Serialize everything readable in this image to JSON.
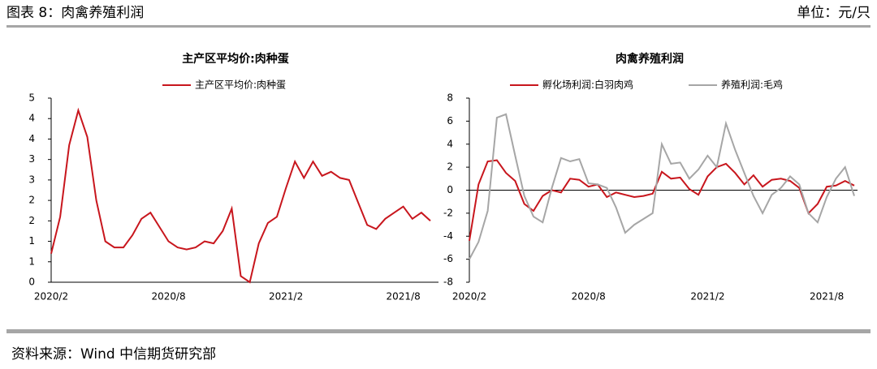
{
  "header": {
    "title": "图表 8：肉禽养殖利润",
    "unit": "单位：元/只"
  },
  "source": "资料来源：Wind 中信期货研究部",
  "chart_data": [
    {
      "type": "line",
      "title": "主产区平均价:肉种蛋",
      "categories": [
        "2020/2",
        null,
        null,
        null,
        null,
        null,
        null,
        null,
        null,
        null,
        null,
        null,
        null,
        "2020/8",
        null,
        null,
        null,
        null,
        null,
        null,
        null,
        null,
        null,
        null,
        null,
        null,
        "2021/2",
        null,
        null,
        null,
        null,
        null,
        null,
        null,
        null,
        null,
        null,
        null,
        null,
        "2021/8",
        null,
        null,
        null
      ],
      "series": [
        {
          "name": "主产区平均价:肉种蛋",
          "color": "#c8161d",
          "values": [
            0.7,
            1.6,
            3.35,
            4.2,
            3.55,
            2.0,
            1.0,
            0.85,
            0.85,
            1.15,
            1.55,
            1.7,
            1.35,
            1.0,
            0.85,
            0.8,
            0.85,
            1.0,
            0.95,
            1.25,
            1.8,
            0.15,
            0,
            0.95,
            1.45,
            1.6,
            2.3,
            2.95,
            2.55,
            2.95,
            2.6,
            2.7,
            2.55,
            2.5,
            1.95,
            1.4,
            1.3,
            1.55,
            1.7,
            1.85,
            1.55,
            1.7,
            1.5
          ]
        }
      ],
      "ylim": [
        0,
        4.5
      ],
      "yticks": [
        0,
        {
          "value": 0.5,
          "label": "1"
        },
        1,
        {
          "value": 1.5,
          "label": "2"
        },
        2,
        {
          "value": 2.5,
          "label": "3"
        },
        3,
        {
          "value": 3.5,
          "label": "4"
        },
        4,
        {
          "value": 4.5,
          "label": "5"
        }
      ]
    },
    {
      "type": "line",
      "title": "肉禽养殖利润",
      "categories": [
        "2020/2",
        null,
        null,
        null,
        null,
        null,
        null,
        null,
        null,
        null,
        null,
        null,
        null,
        "2020/8",
        null,
        null,
        null,
        null,
        null,
        null,
        null,
        null,
        null,
        null,
        null,
        null,
        "2021/2",
        null,
        null,
        null,
        null,
        null,
        null,
        null,
        null,
        null,
        null,
        null,
        null,
        "2021/8",
        null,
        null,
        null
      ],
      "series": [
        {
          "name": "孵化场利润:白羽肉鸡",
          "color": "#c8161d",
          "values": [
            -4.4,
            0.5,
            2.5,
            2.6,
            1.5,
            0.8,
            -1.2,
            -1.8,
            -0.5,
            0,
            -0.2,
            1,
            0.9,
            0.3,
            0.5,
            -0.6,
            -0.2,
            -0.4,
            -0.6,
            -0.5,
            -0.3,
            1.6,
            1.0,
            1.1,
            0.1,
            -0.4,
            1.2,
            2.0,
            2.3,
            1.5,
            0.5,
            1.3,
            0.3,
            0.9,
            1.0,
            0.8,
            0.2,
            -2.0,
            -1.2,
            0.3,
            0.4,
            0.8,
            0.4
          ]
        },
        {
          "name": "养殖利润:毛鸡",
          "color": "#a6a6a6",
          "values": [
            -6,
            -4.5,
            -1.8,
            6.3,
            6.6,
            3,
            -0.5,
            -2.3,
            -2.8,
            0.2,
            2.8,
            2.5,
            2.7,
            0.6,
            0.5,
            0.2,
            -1.5,
            -3.7,
            -3,
            -2.5,
            -2.0,
            4,
            2.3,
            2.4,
            1,
            1.8,
            3,
            2,
            5.8,
            3.5,
            1.5,
            -0.5,
            -2,
            -0.4,
            0.2,
            1.2,
            0.5,
            -2,
            -2.8,
            -0.6,
            1.0,
            2.0,
            -0.5
          ]
        }
      ],
      "ylim": [
        -8,
        8
      ],
      "yticks": [
        -8,
        -6,
        -4,
        -2,
        0,
        2,
        4,
        6,
        8
      ]
    }
  ]
}
